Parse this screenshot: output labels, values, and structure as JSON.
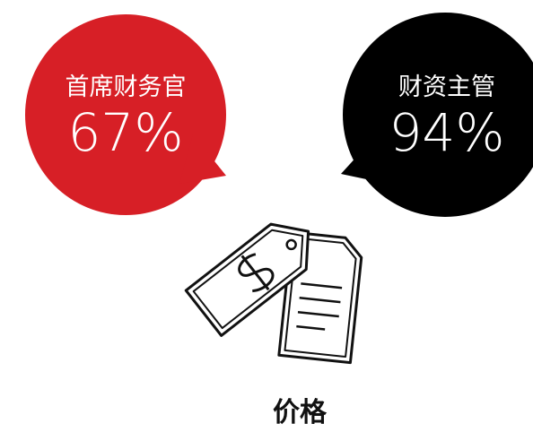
{
  "bubbles": [
    {
      "label": "首席财务官",
      "value": "67%"
    },
    {
      "label": "财资主管",
      "value": "94%"
    }
  ],
  "caption": "价格"
}
